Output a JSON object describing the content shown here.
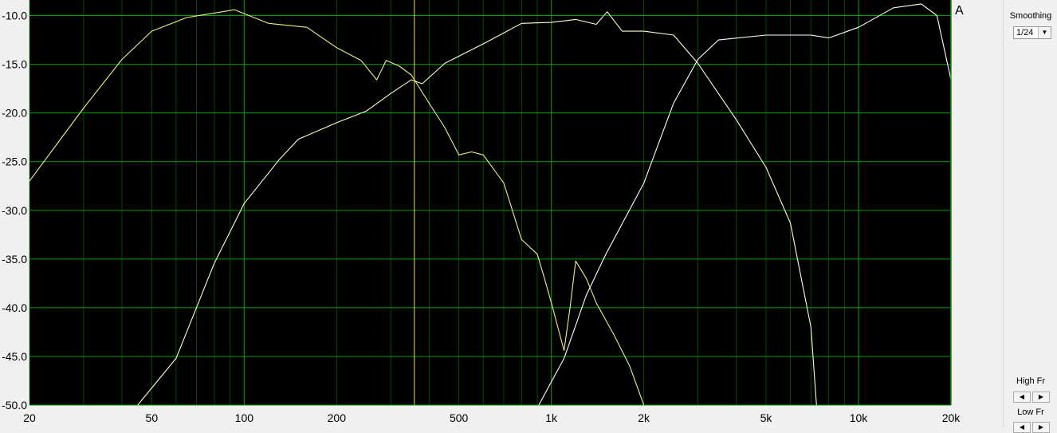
{
  "chart_data": {
    "type": "line",
    "title": "",
    "xlabel": "",
    "ylabel": "",
    "xscale": "log",
    "xlim": [
      20,
      20000
    ],
    "ylim": [
      -50,
      -8.4
    ],
    "grid": true,
    "x_ticks": [
      {
        "v": 20,
        "label": "20"
      },
      {
        "v": 50,
        "label": "50"
      },
      {
        "v": 100,
        "label": "100"
      },
      {
        "v": 200,
        "label": "200"
      },
      {
        "v": 500,
        "label": "500"
      },
      {
        "v": 1000,
        "label": "1k"
      },
      {
        "v": 2000,
        "label": "2k"
      },
      {
        "v": 5000,
        "label": "5k"
      },
      {
        "v": 10000,
        "label": "10k"
      },
      {
        "v": 20000,
        "label": "20k"
      }
    ],
    "y_ticks": [
      {
        "v": -10,
        "label": "-10.0"
      },
      {
        "v": -15,
        "label": "-15.0"
      },
      {
        "v": -20,
        "label": "-20.0"
      },
      {
        "v": -25,
        "label": "-25.0"
      },
      {
        "v": -30,
        "label": "-30.0"
      },
      {
        "v": -35,
        "label": "-35.0"
      },
      {
        "v": -40,
        "label": "-40.0"
      },
      {
        "v": -45,
        "label": "-45.0"
      },
      {
        "v": -50,
        "label": "-50.0"
      }
    ],
    "cursor_x": 358,
    "colors": {
      "background": "#000000",
      "grid": "#00a000",
      "cursor": "#e8e800"
    },
    "series": [
      {
        "color": "#f0f080",
        "points": [
          [
            20,
            -27
          ],
          [
            30,
            -19.5
          ],
          [
            40,
            -14.5
          ],
          [
            50,
            -11.6
          ],
          [
            65,
            -10.2
          ],
          [
            93,
            -9.4
          ],
          [
            120,
            -10.8
          ],
          [
            160,
            -11.2
          ],
          [
            200,
            -13.3
          ],
          [
            240,
            -14.6
          ],
          [
            270,
            -16.6
          ],
          [
            290,
            -14.6
          ],
          [
            320,
            -15.2
          ],
          [
            350,
            -16.1
          ],
          [
            400,
            -19
          ],
          [
            450,
            -21.5
          ],
          [
            500,
            -24.3
          ],
          [
            550,
            -24
          ],
          [
            600,
            -24.3
          ],
          [
            700,
            -27.2
          ],
          [
            800,
            -33
          ],
          [
            900,
            -34.5
          ],
          [
            950,
            -37
          ],
          [
            1000,
            -39.5
          ],
          [
            1100,
            -44.4
          ],
          [
            1150,
            -40
          ],
          [
            1200,
            -35.2
          ],
          [
            1300,
            -37
          ],
          [
            1400,
            -39.5
          ],
          [
            1600,
            -42.8
          ],
          [
            1800,
            -46
          ],
          [
            2000,
            -50
          ]
        ]
      },
      {
        "color": "#ffffd0",
        "points": [
          [
            45,
            -50
          ],
          [
            60,
            -45.2
          ],
          [
            80,
            -35.4
          ],
          [
            100,
            -29.3
          ],
          [
            130,
            -24.8
          ],
          [
            150,
            -22.7
          ],
          [
            200,
            -21
          ],
          [
            250,
            -19.8
          ],
          [
            300,
            -18
          ],
          [
            350,
            -16.6
          ],
          [
            380,
            -17
          ],
          [
            450,
            -14.9
          ],
          [
            600,
            -12.9
          ],
          [
            800,
            -10.8
          ],
          [
            1000,
            -10.7
          ],
          [
            1200,
            -10.4
          ],
          [
            1400,
            -10.9
          ],
          [
            1520,
            -9.6
          ],
          [
            1700,
            -11.6
          ],
          [
            2000,
            -11.6
          ],
          [
            2500,
            -12
          ],
          [
            3000,
            -14.9
          ],
          [
            4000,
            -20.7
          ],
          [
            5000,
            -25.6
          ],
          [
            6000,
            -31.3
          ],
          [
            7000,
            -42
          ],
          [
            7300,
            -50
          ]
        ]
      },
      {
        "color": "#ffffff",
        "points": [
          [
            910,
            -50
          ],
          [
            1100,
            -45.2
          ],
          [
            1300,
            -38.7
          ],
          [
            1500,
            -34.6
          ],
          [
            2000,
            -27.2
          ],
          [
            2500,
            -19
          ],
          [
            3000,
            -14.5
          ],
          [
            3500,
            -12.5
          ],
          [
            5000,
            -12
          ],
          [
            7000,
            -12
          ],
          [
            8000,
            -12.3
          ],
          [
            10000,
            -11.2
          ],
          [
            13000,
            -9.2
          ],
          [
            16000,
            -8.8
          ],
          [
            18000,
            -10
          ],
          [
            20000,
            -16.6
          ]
        ]
      }
    ]
  },
  "panel": {
    "smoothing_label": "Smoothing",
    "smoothing_value": "1/24",
    "high_fr_label": "High Fr",
    "low_fr_label": "Low Fr",
    "marker_text": "A"
  }
}
